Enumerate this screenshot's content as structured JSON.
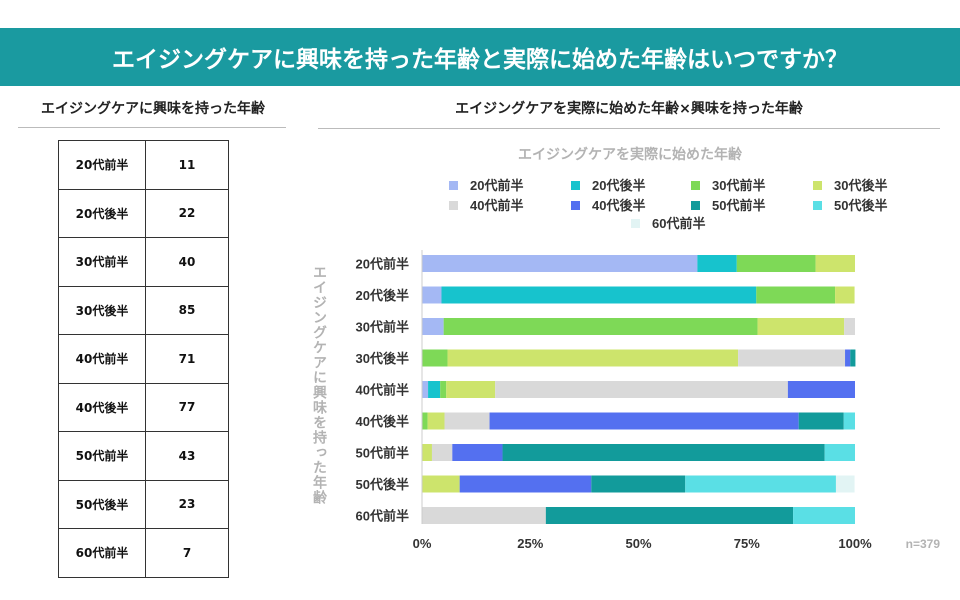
{
  "page": {
    "banner_title": "エイジングケアに興味を持った年齢と実際に始めた年齢はいつですか？",
    "left_title": "エイジングケアに興味を持った年齢",
    "right_title": "エイジングケアを実際に始めた年齢×興味を持った年齢"
  },
  "counts_table": [
    {
      "label": "20代前半",
      "value": "11"
    },
    {
      "label": "20代後半",
      "value": "22"
    },
    {
      "label": "30代前半",
      "value": "40"
    },
    {
      "label": "30代後半",
      "value": "85"
    },
    {
      "label": "40代前半",
      "value": "71"
    },
    {
      "label": "40代後半",
      "value": "77"
    },
    {
      "label": "50代前半",
      "value": "43"
    },
    {
      "label": "50代後半",
      "value": "23"
    },
    {
      "label": "60代前半",
      "value": "7"
    }
  ],
  "chart_data": {
    "type": "bar",
    "orientation": "horizontal",
    "stacked": true,
    "title": "エイジングケアを実際に始めた年齢",
    "ylabel": "エイジングケアに興味を持った年齢",
    "xlim": [
      0,
      100
    ],
    "xticks": [
      "0%",
      "25%",
      "50%",
      "75%",
      "100%"
    ],
    "note": "n=379",
    "legend_position": "top",
    "categories": [
      "20代前半",
      "20代後半",
      "30代前半",
      "30代後半",
      "40代前半",
      "40代後半",
      "50代前半",
      "50代後半",
      "60代前半"
    ],
    "series": [
      {
        "name": "20代前半",
        "color": "#a4b8f4",
        "values": [
          63.6,
          4.5,
          5.0,
          0,
          1.4,
          0,
          0,
          0,
          0
        ]
      },
      {
        "name": "20代後半",
        "color": "#17c3cd",
        "values": [
          9.1,
          72.7,
          0,
          0,
          2.8,
          0,
          0,
          0,
          0
        ]
      },
      {
        "name": "30代前半",
        "color": "#7ed957",
        "values": [
          18.2,
          18.2,
          72.5,
          5.9,
          1.4,
          1.3,
          0,
          0,
          0
        ]
      },
      {
        "name": "30代後半",
        "color": "#cde46c",
        "values": [
          9.1,
          4.5,
          20.0,
          67.1,
          11.3,
          3.9,
          2.3,
          8.7,
          0
        ]
      },
      {
        "name": "40代前半",
        "color": "#d9d9d9",
        "values": [
          0,
          0,
          2.5,
          24.7,
          67.6,
          10.4,
          4.7,
          0,
          28.6
        ]
      },
      {
        "name": "40代後半",
        "color": "#5470f0",
        "values": [
          0,
          0,
          0,
          1.2,
          15.5,
          71.4,
          11.6,
          30.4,
          0
        ]
      },
      {
        "name": "50代前半",
        "color": "#129b9b",
        "values": [
          0,
          0,
          0,
          1.2,
          0,
          10.4,
          74.4,
          21.7,
          57.1
        ]
      },
      {
        "name": "50代後半",
        "color": "#5adfe5",
        "values": [
          0,
          0,
          0,
          0,
          0,
          2.6,
          7.0,
          34.8,
          14.3
        ]
      },
      {
        "name": "60代前半",
        "color": "#e2f4f4",
        "values": [
          0,
          0,
          0,
          0,
          0,
          0,
          0,
          4.3,
          0
        ]
      }
    ]
  }
}
